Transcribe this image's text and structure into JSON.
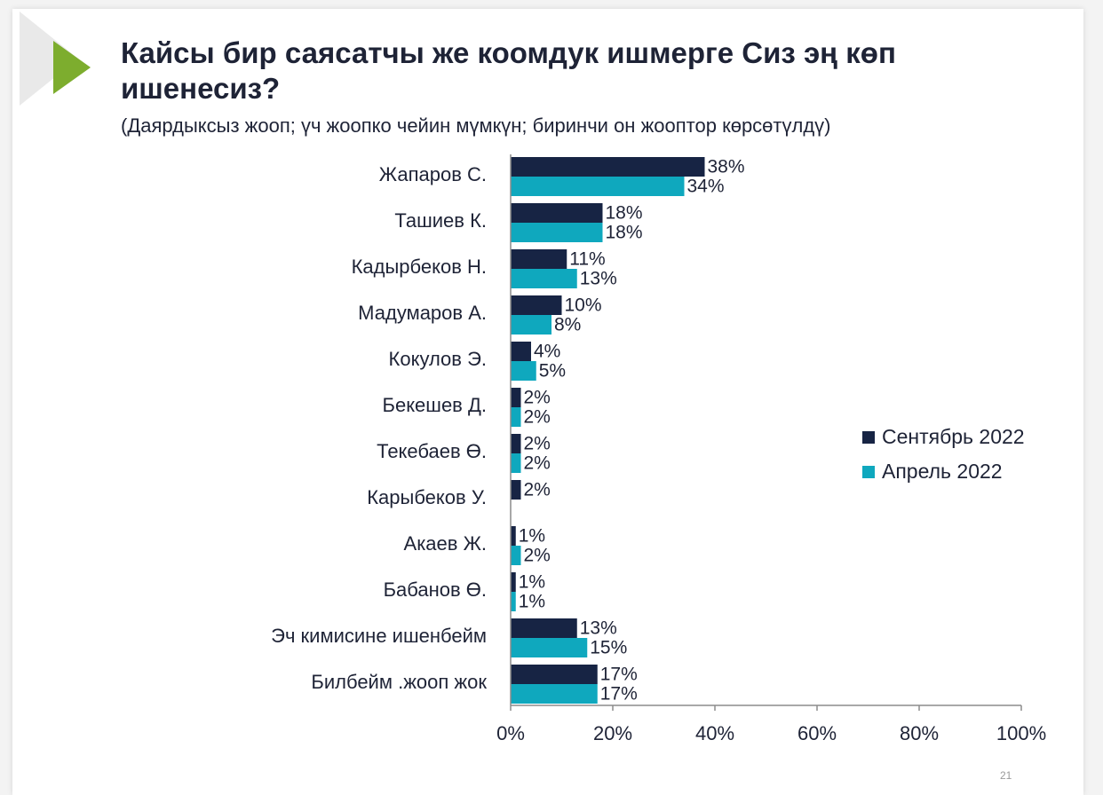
{
  "slide": {
    "title": "Кайсы бир саясатчы же коомдук ишмерге Сиз эң көп ишенесиз?",
    "subtitle": "(Даярдыксыз жооп; үч жоопко чейин мүмкүн; биринчи он жооптор көрсөтүлдү)",
    "page_number": "21"
  },
  "colors": {
    "series_1": "#172444",
    "series_2": "#0fa8be",
    "arrow_green": "#7dad2e",
    "arrow_gray": "#e9e9e9"
  },
  "chart_data": {
    "type": "bar",
    "orientation": "horizontal",
    "categories": [
      "Жапаров С.",
      "Ташиев К.",
      "Кадырбеков Н.",
      "Мадумаров А.",
      "Кокулов Э.",
      "Бекешев Д.",
      "Текебаев Ө.",
      "Карыбеков У.",
      "Акаев Ж.",
      "Бабанов Ө.",
      "Эч кимисине ишенбейм",
      "Билбейм .жооп жок"
    ],
    "series": [
      {
        "name": "Сентябрь 2022",
        "values": [
          38,
          18,
          11,
          10,
          4,
          2,
          2,
          2,
          1,
          1,
          13,
          17
        ],
        "labels": [
          "38%",
          "18%",
          "11%",
          "10%",
          "4%",
          "2%",
          "2%",
          "2%",
          "1%",
          "1%",
          "13%",
          "17%"
        ]
      },
      {
        "name": "Апрель 2022",
        "values": [
          34,
          18,
          13,
          8,
          5,
          2,
          2,
          null,
          2,
          1,
          15,
          17
        ],
        "labels": [
          "34%",
          "18%",
          "13%",
          "8%",
          "5%",
          "2%",
          "2%",
          "",
          "2%",
          "1%",
          "15%",
          "17%"
        ]
      }
    ],
    "xlim": [
      0,
      100
    ],
    "xticks": [
      "0%",
      "20%",
      "40%",
      "60%",
      "80%",
      "100%"
    ],
    "legend": "right"
  }
}
